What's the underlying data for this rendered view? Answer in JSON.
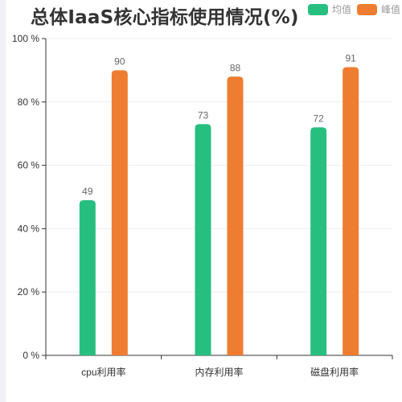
{
  "colors": {
    "series_mean": "#27bf7f",
    "series_peak": "#ee7d31",
    "axis": "#333333",
    "grid": "#eeeeee",
    "label": "#666666"
  },
  "chart_data": {
    "type": "bar",
    "title": "总体IaaS核心指标使用情况(%)",
    "categories": [
      "cpu利用率",
      "内存利用率",
      "磁盘利用率"
    ],
    "series": [
      {
        "name": "均值",
        "values": [
          49,
          73,
          72
        ]
      },
      {
        "name": "峰值",
        "values": [
          90,
          88,
          91
        ]
      }
    ],
    "ylim": [
      0,
      100
    ],
    "yticks": [
      0,
      20,
      40,
      60,
      80,
      100
    ],
    "ytick_labels": [
      "0 %",
      "20 %",
      "40 %",
      "60 %",
      "80 %",
      "100 %"
    ],
    "grid": true,
    "legend": "top-right",
    "data_labels": true
  }
}
